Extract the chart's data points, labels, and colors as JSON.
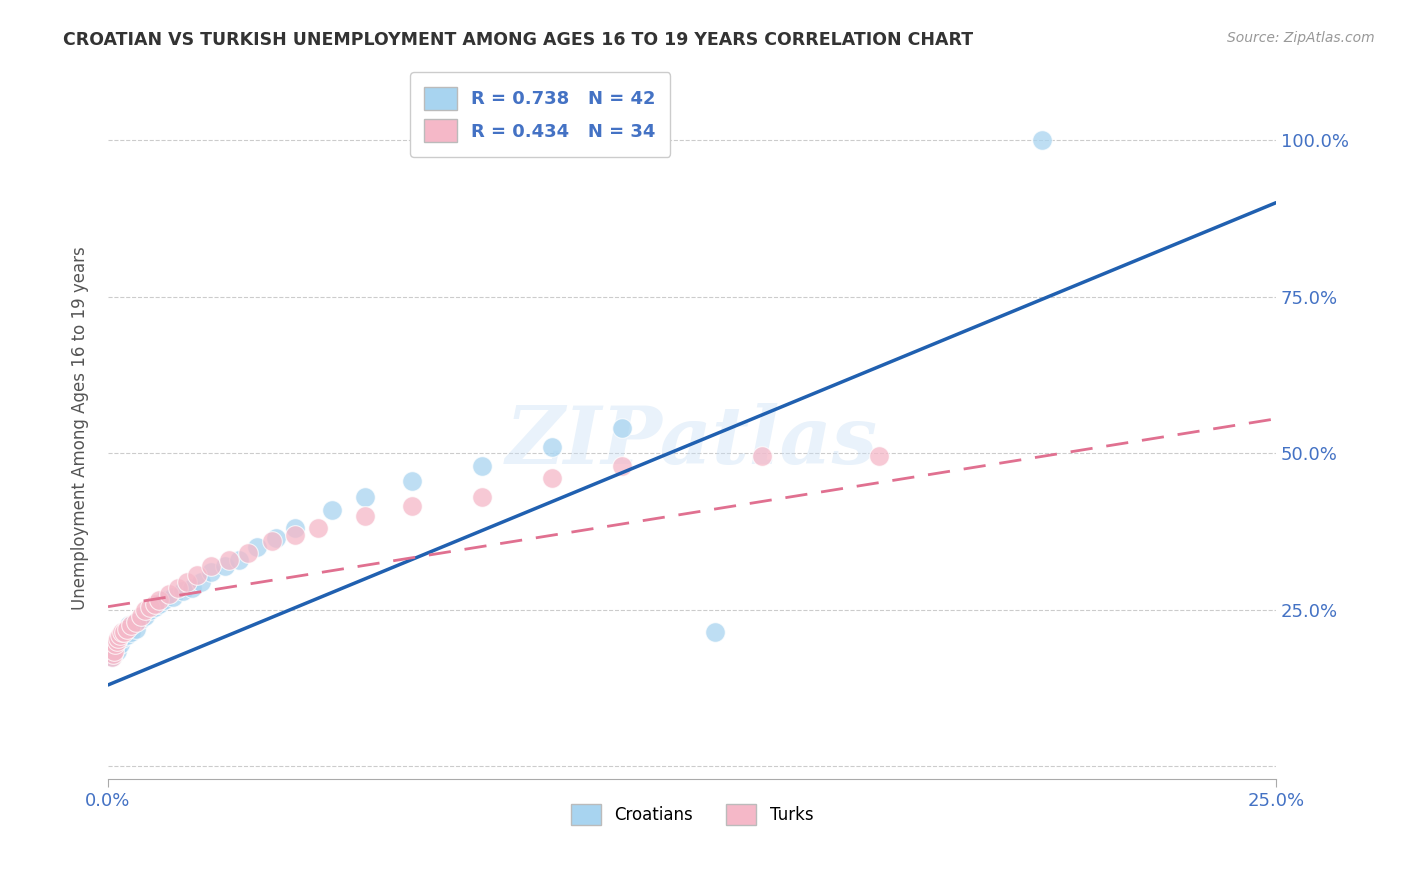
{
  "title": "CROATIAN VS TURKISH UNEMPLOYMENT AMONG AGES 16 TO 19 YEARS CORRELATION CHART",
  "source": "Source: ZipAtlas.com",
  "ylabel": "Unemployment Among Ages 16 to 19 years",
  "xlim": [
    0.0,
    0.25
  ],
  "ylim": [
    -0.02,
    1.1
  ],
  "watermark": "ZIPatlas",
  "croatian_color": "#a8d4f0",
  "turkish_color": "#f5b8c8",
  "croatian_line_color": "#2060b0",
  "turkish_line_color": "#e07090",
  "croatian_line_x0": 0.0,
  "croatian_line_y0": 0.13,
  "croatian_line_x1": 0.25,
  "croatian_line_y1": 0.9,
  "turkish_line_x0": 0.0,
  "turkish_line_y0": 0.255,
  "turkish_line_x1": 0.25,
  "turkish_line_y1": 0.555,
  "cr_x": [
    0.0008,
    0.001,
    0.0012,
    0.0015,
    0.0018,
    0.002,
    0.0022,
    0.0025,
    0.003,
    0.003,
    0.0035,
    0.004,
    0.004,
    0.0045,
    0.005,
    0.005,
    0.006,
    0.006,
    0.007,
    0.008,
    0.009,
    0.01,
    0.011,
    0.012,
    0.014,
    0.016,
    0.018,
    0.02,
    0.022,
    0.025,
    0.028,
    0.032,
    0.036,
    0.04,
    0.048,
    0.055,
    0.065,
    0.08,
    0.095,
    0.11,
    0.13,
    0.2
  ],
  "cr_y": [
    0.175,
    0.185,
    0.18,
    0.19,
    0.195,
    0.185,
    0.2,
    0.195,
    0.21,
    0.205,
    0.215,
    0.22,
    0.21,
    0.225,
    0.215,
    0.225,
    0.23,
    0.22,
    0.235,
    0.24,
    0.25,
    0.255,
    0.26,
    0.265,
    0.27,
    0.28,
    0.285,
    0.295,
    0.31,
    0.32,
    0.33,
    0.35,
    0.365,
    0.38,
    0.41,
    0.43,
    0.455,
    0.48,
    0.51,
    0.54,
    0.215,
    1.0
  ],
  "tu_x": [
    0.0008,
    0.001,
    0.0012,
    0.0015,
    0.002,
    0.0022,
    0.0025,
    0.003,
    0.0035,
    0.004,
    0.005,
    0.006,
    0.007,
    0.008,
    0.009,
    0.01,
    0.011,
    0.013,
    0.015,
    0.017,
    0.019,
    0.022,
    0.026,
    0.03,
    0.035,
    0.04,
    0.045,
    0.055,
    0.065,
    0.08,
    0.095,
    0.11,
    0.14,
    0.165
  ],
  "tu_y": [
    0.175,
    0.18,
    0.185,
    0.195,
    0.2,
    0.205,
    0.21,
    0.215,
    0.215,
    0.22,
    0.225,
    0.23,
    0.24,
    0.25,
    0.255,
    0.26,
    0.265,
    0.275,
    0.285,
    0.295,
    0.305,
    0.32,
    0.33,
    0.34,
    0.36,
    0.37,
    0.38,
    0.4,
    0.415,
    0.43,
    0.46,
    0.48,
    0.495,
    0.495
  ],
  "xtick_vals": [
    0.0,
    0.25
  ],
  "xtick_labels": [
    "0.0%",
    "25.0%"
  ],
  "ytick_vals": [
    0.0,
    0.25,
    0.5,
    0.75,
    1.0
  ],
  "ytick_labels": [
    "",
    "25.0%",
    "50.0%",
    "75.0%",
    "100.0%"
  ],
  "grid_yticks": [
    0.0,
    0.25,
    0.5,
    0.75,
    1.0
  ]
}
